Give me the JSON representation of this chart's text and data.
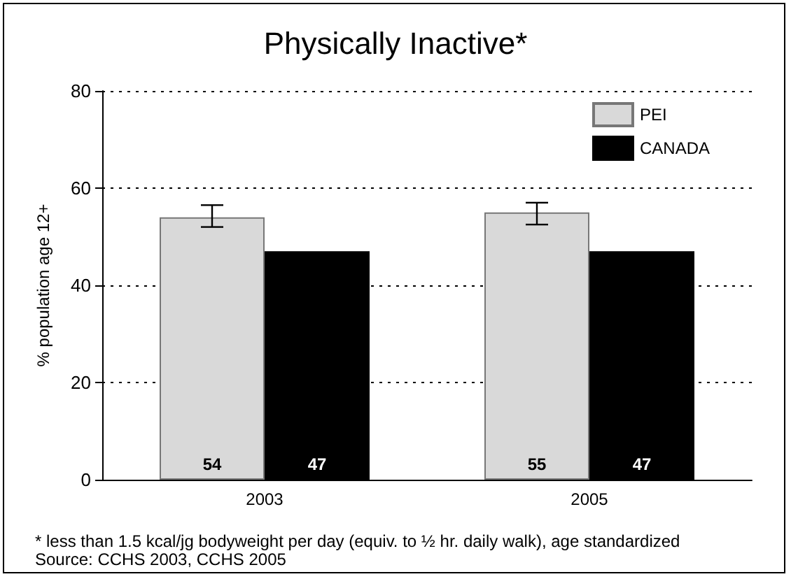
{
  "chart_data": {
    "type": "bar",
    "title": "Physically Inactive*",
    "ylabel": "% population age 12+",
    "categories": [
      "2003",
      "2005"
    ],
    "series": [
      {
        "name": "PEI",
        "color": "#d9d9d9",
        "values": [
          54,
          55
        ],
        "errors": [
          [
            52,
            56.5
          ],
          [
            52.5,
            57
          ]
        ]
      },
      {
        "name": "CANADA",
        "color": "#000000",
        "values": [
          47,
          47
        ]
      }
    ],
    "ylim": [
      0,
      80
    ],
    "yticks": [
      0,
      20,
      40,
      60,
      80
    ],
    "grid": "y",
    "legend": "top right",
    "data_labels": true,
    "annotations": [
      "* less than 1.5 kcal/jg bodyweight per day (equiv. to ½ hr. daily walk), age standardized",
      "Source: CCHS 2003, CCHS 2005"
    ]
  }
}
